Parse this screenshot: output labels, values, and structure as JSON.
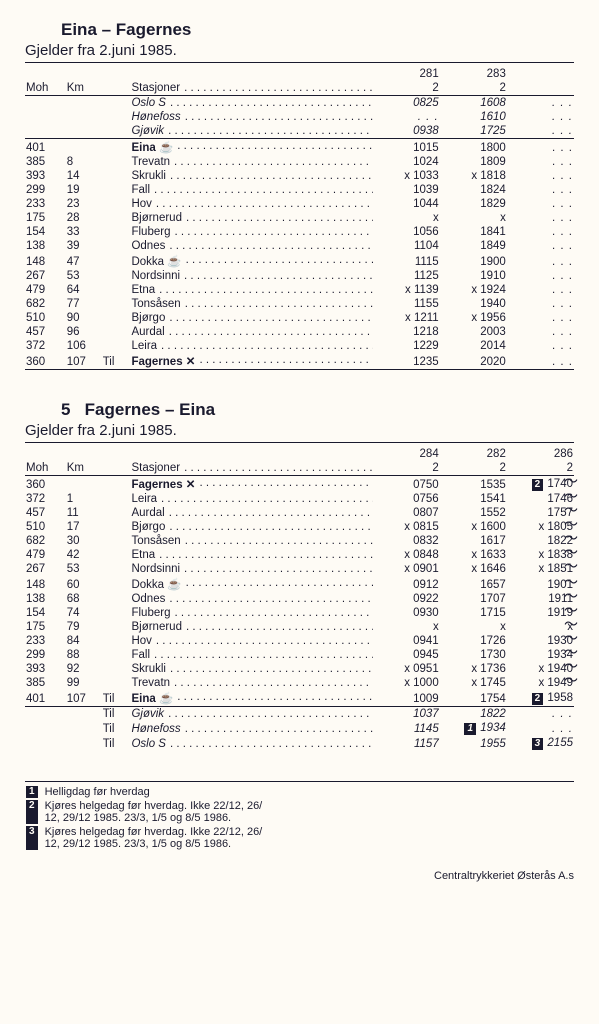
{
  "section1": {
    "title": "Eina – Fagernes",
    "subtitle": "Gjelder fra 2.juni 1985.",
    "trains": [
      "281",
      "283",
      ""
    ],
    "class": [
      "2",
      "2",
      ""
    ],
    "header_labels": {
      "moh": "Moh",
      "km": "Km",
      "stn": "Stasjoner"
    },
    "rows": [
      {
        "moh": "",
        "km": "",
        "til": "",
        "stn": "Oslo S",
        "ic": "",
        "i": true,
        "b": false,
        "top": true,
        "t": [
          "0825",
          "1608",
          ". . ."
        ]
      },
      {
        "moh": "",
        "km": "",
        "til": "",
        "stn": "Hønefoss",
        "ic": "",
        "i": true,
        "b": false,
        "t": [
          ". . .",
          "1610",
          ". . ."
        ]
      },
      {
        "moh": "",
        "km": "",
        "til": "",
        "stn": "Gjøvik",
        "ic": "",
        "i": true,
        "b": false,
        "bot": true,
        "t": [
          "0938",
          "1725",
          ". . ."
        ]
      },
      {
        "moh": "401",
        "km": "",
        "til": "",
        "stn": "Eina",
        "ic": "☕",
        "b": true,
        "t": [
          "1015",
          "1800",
          ". . ."
        ]
      },
      {
        "moh": "385",
        "km": "8",
        "til": "",
        "stn": "Trevatn",
        "ic": "",
        "t": [
          "1024",
          "1809",
          ". . ."
        ]
      },
      {
        "moh": "393",
        "km": "14",
        "til": "",
        "stn": "Skrukli",
        "ic": "",
        "t": [
          "x 1033",
          "x 1818",
          ". . ."
        ]
      },
      {
        "moh": "299",
        "km": "19",
        "til": "",
        "stn": "Fall",
        "ic": "",
        "t": [
          "1039",
          "1824",
          ". . ."
        ]
      },
      {
        "moh": "233",
        "km": "23",
        "til": "",
        "stn": "Hov",
        "ic": "",
        "t": [
          "1044",
          "1829",
          ". . ."
        ]
      },
      {
        "moh": "175",
        "km": "28",
        "til": "",
        "stn": "Bjørnerud",
        "ic": "",
        "t": [
          "x",
          "x",
          ". . ."
        ]
      },
      {
        "moh": "154",
        "km": "33",
        "til": "",
        "stn": "Fluberg",
        "ic": "",
        "t": [
          "1056",
          "1841",
          ". . ."
        ]
      },
      {
        "moh": "138",
        "km": "39",
        "til": "",
        "stn": "Odnes",
        "ic": "",
        "t": [
          "1104",
          "1849",
          ". . ."
        ]
      },
      {
        "moh": "148",
        "km": "47",
        "til": "",
        "stn": "Dokka",
        "ic": "☕",
        "t": [
          "1115",
          "1900",
          ". . ."
        ]
      },
      {
        "moh": "267",
        "km": "53",
        "til": "",
        "stn": "Nordsinni",
        "ic": "",
        "t": [
          "1125",
          "1910",
          ". . ."
        ]
      },
      {
        "moh": "479",
        "km": "64",
        "til": "",
        "stn": "Etna",
        "ic": "",
        "t": [
          "x 1139",
          "x 1924",
          ". . ."
        ]
      },
      {
        "moh": "682",
        "km": "77",
        "til": "",
        "stn": "Tonsåsen",
        "ic": "",
        "t": [
          "1155",
          "1940",
          ". . ."
        ]
      },
      {
        "moh": "510",
        "km": "90",
        "til": "",
        "stn": "Bjørgo",
        "ic": "",
        "t": [
          "x 1211",
          "x 1956",
          ". . ."
        ]
      },
      {
        "moh": "457",
        "km": "96",
        "til": "",
        "stn": "Aurdal",
        "ic": "",
        "t": [
          "1218",
          "2003",
          ". . ."
        ]
      },
      {
        "moh": "372",
        "km": "106",
        "til": "",
        "stn": "Leira",
        "ic": "",
        "t": [
          "1229",
          "2014",
          ". . ."
        ]
      },
      {
        "moh": "360",
        "km": "107",
        "til": "Til",
        "stn": "Fagernes",
        "ic": "✕",
        "b": true,
        "bot": true,
        "t": [
          "1235",
          "2020",
          ". . ."
        ]
      }
    ]
  },
  "section2": {
    "title_n": "5",
    "title": "Fagernes – Eina",
    "subtitle": "Gjelder fra 2.juni 1985.",
    "trains": [
      "284",
      "282",
      "286"
    ],
    "class": [
      "2",
      "2",
      "2"
    ],
    "header_labels": {
      "moh": "Moh",
      "km": "Km",
      "stn": "Stasjoner"
    },
    "rows": [
      {
        "moh": "360",
        "km": "",
        "til": "",
        "stn": "Fagernes",
        "ic": "✕",
        "b": true,
        "top": true,
        "t": [
          "0750",
          "1535",
          "1740"
        ],
        "m2": "2",
        "w": true
      },
      {
        "moh": "372",
        "km": "1",
        "til": "",
        "stn": "Leira",
        "ic": "",
        "t": [
          "0756",
          "1541",
          "1746"
        ],
        "w": true
      },
      {
        "moh": "457",
        "km": "11",
        "til": "",
        "stn": "Aurdal",
        "ic": "",
        "t": [
          "0807",
          "1552",
          "1757"
        ],
        "w": true
      },
      {
        "moh": "510",
        "km": "17",
        "til": "",
        "stn": "Bjørgo",
        "ic": "",
        "t": [
          "x 0815",
          "x 1600",
          "x 1805"
        ],
        "w": true
      },
      {
        "moh": "682",
        "km": "30",
        "til": "",
        "stn": "Tonsåsen",
        "ic": "",
        "t": [
          "0832",
          "1617",
          "1822"
        ],
        "w": true
      },
      {
        "moh": "479",
        "km": "42",
        "til": "",
        "stn": "Etna",
        "ic": "",
        "t": [
          "x 0848",
          "x 1633",
          "x 1838"
        ],
        "w": true
      },
      {
        "moh": "267",
        "km": "53",
        "til": "",
        "stn": "Nordsinni",
        "ic": "",
        "t": [
          "x 0901",
          "x 1646",
          "x 1851"
        ],
        "w": true
      },
      {
        "moh": "148",
        "km": "60",
        "til": "",
        "stn": "Dokka",
        "ic": "☕",
        "t": [
          "0912",
          "1657",
          "1901"
        ],
        "w": true
      },
      {
        "moh": "138",
        "km": "68",
        "til": "",
        "stn": "Odnes",
        "ic": "",
        "t": [
          "0922",
          "1707",
          "1911"
        ],
        "w": true
      },
      {
        "moh": "154",
        "km": "74",
        "til": "",
        "stn": "Fluberg",
        "ic": "",
        "t": [
          "0930",
          "1715",
          "1919"
        ],
        "w": true
      },
      {
        "moh": "175",
        "km": "79",
        "til": "",
        "stn": "Bjørnerud",
        "ic": "",
        "t": [
          "x",
          "x",
          "x"
        ],
        "w": true
      },
      {
        "moh": "233",
        "km": "84",
        "til": "",
        "stn": "Hov",
        "ic": "",
        "t": [
          "0941",
          "1726",
          "1930"
        ],
        "w": true
      },
      {
        "moh": "299",
        "km": "88",
        "til": "",
        "stn": "Fall",
        "ic": "",
        "t": [
          "0945",
          "1730",
          "1934"
        ],
        "w": true
      },
      {
        "moh": "393",
        "km": "92",
        "til": "",
        "stn": "Skrukli",
        "ic": "",
        "t": [
          "x 0951",
          "x 1736",
          "x 1940"
        ],
        "w": true
      },
      {
        "moh": "385",
        "km": "99",
        "til": "",
        "stn": "Trevatn",
        "ic": "",
        "t": [
          "x 1000",
          "x 1745",
          "x 1949"
        ],
        "w": true
      },
      {
        "moh": "401",
        "km": "107",
        "til": "Til",
        "stn": "Eina",
        "ic": "☕",
        "b": true,
        "bot": true,
        "t": [
          "1009",
          "1754",
          "1958"
        ],
        "m2": "2"
      },
      {
        "moh": "",
        "km": "",
        "til": "Til",
        "stn": "Gjøvik",
        "ic": "",
        "i": true,
        "t": [
          "1037",
          "1822",
          ". . ."
        ]
      },
      {
        "moh": "",
        "km": "",
        "til": "Til",
        "stn": "Hønefoss",
        "ic": "",
        "i": true,
        "t": [
          "1145",
          "1934",
          ". . ."
        ],
        "m1": "1"
      },
      {
        "moh": "",
        "km": "",
        "til": "Til",
        "stn": "Oslo S",
        "ic": "",
        "i": true,
        "t": [
          "1157",
          "1955",
          "2155"
        ],
        "m2_end": "3"
      }
    ]
  },
  "notes": [
    {
      "n": "1",
      "t": "Helligdag før hverdag"
    },
    {
      "n": "2",
      "t": "Kjøres helgedag før hverdag. Ikke 22/12, 26/\n12, 29/12 1985. 23/3, 1/5 og 8/5 1986."
    },
    {
      "n": "3",
      "t": "Kjøres helgedag før hverdag. Ikke 22/12, 26/\n12, 29/12 1985. 23/3, 1/5 og 8/5 1986."
    }
  ],
  "footer": "Centraltrykkeriet Østerås A.s"
}
